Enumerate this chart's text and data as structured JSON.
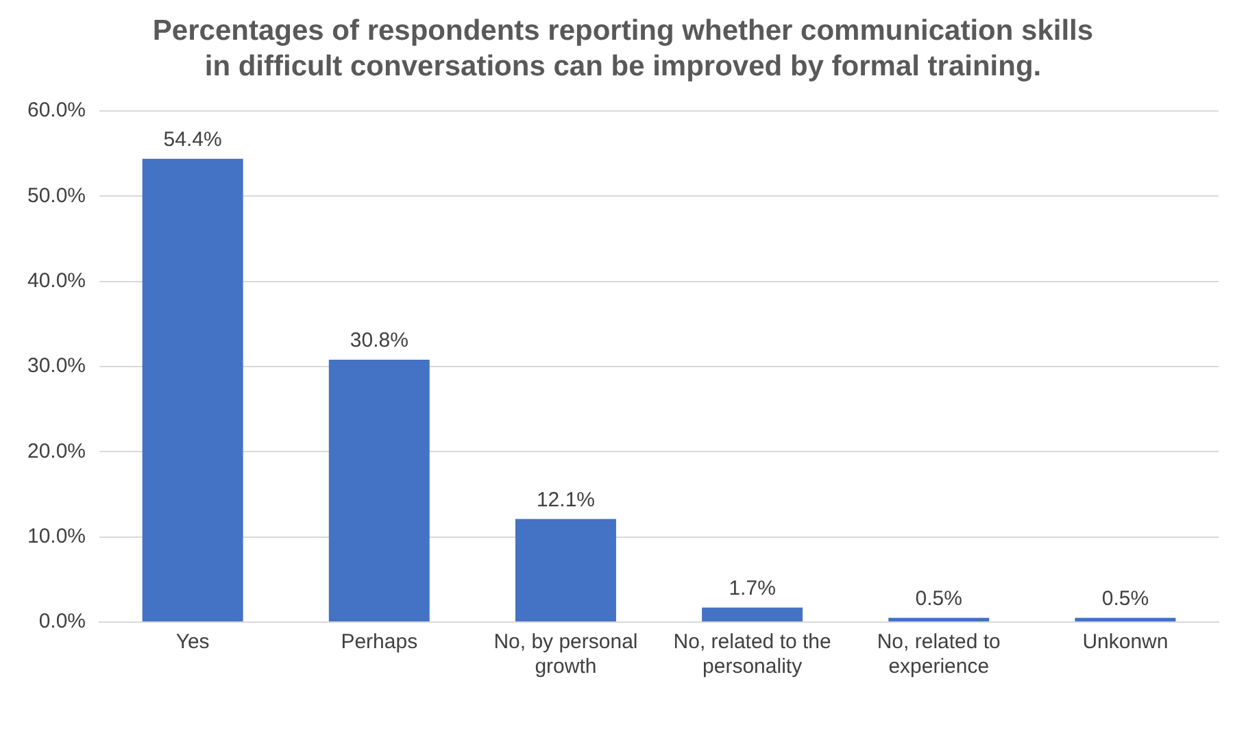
{
  "chart_data": {
    "type": "bar",
    "title": "Percentages of respondents reporting whether communication skills in difficult conversations can be improved by formal training.",
    "categories": [
      "Yes",
      "Perhaps",
      "No, by personal growth",
      "No, related to the personality",
      "No, related to experience",
      "Unkonwn"
    ],
    "values": [
      54.4,
      30.8,
      12.1,
      1.7,
      0.5,
      0.5
    ],
    "value_labels": [
      "54.4%",
      "30.8%",
      "12.1%",
      "1.7%",
      "0.5%",
      "0.5%"
    ],
    "color": "#4472c4",
    "ylim": [
      0,
      60
    ],
    "yticks": [
      {
        "value": 0,
        "label": "0.0%"
      },
      {
        "value": 10,
        "label": "10.0%"
      },
      {
        "value": 20,
        "label": "20.0%"
      },
      {
        "value": 30,
        "label": "30.0%"
      },
      {
        "value": 40,
        "label": "40.0%"
      },
      {
        "value": 50,
        "label": "50.0%"
      },
      {
        "value": 60,
        "label": "60.0%"
      }
    ],
    "grid": "y",
    "legend": false
  }
}
